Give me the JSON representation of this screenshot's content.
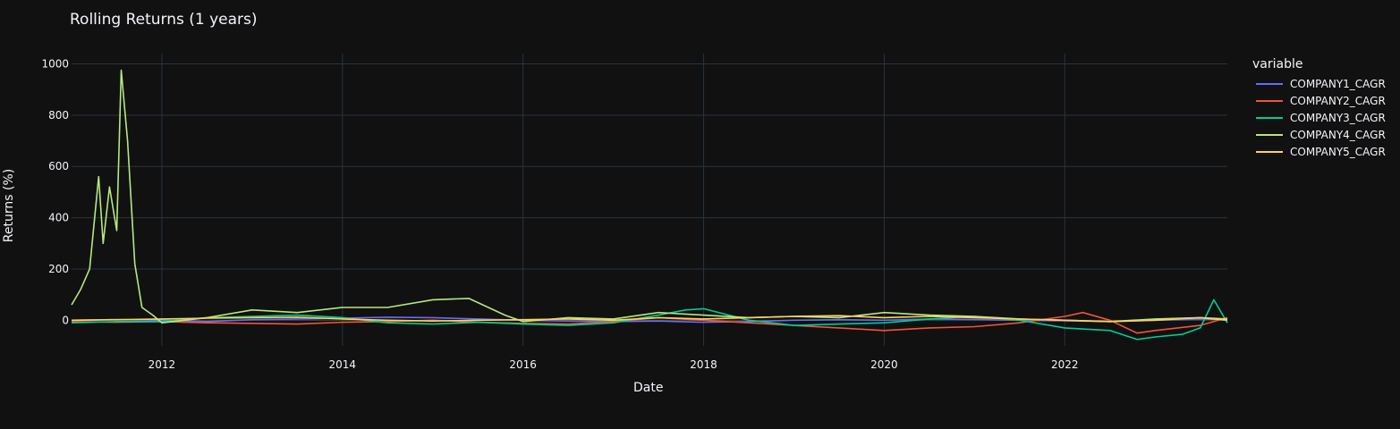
{
  "chart_data": {
    "type": "line",
    "title": "Rolling Returns (1 years)",
    "xlabel": "Date",
    "ylabel": "Returns (%)",
    "legend_title": "variable",
    "legend_position": "top-right",
    "grid": true,
    "xlim": [
      2011.0,
      2023.8
    ],
    "ylim": [
      -100,
      1040
    ],
    "x_ticks": [
      "2012",
      "2014",
      "2016",
      "2018",
      "2020",
      "2022"
    ],
    "x_tick_values": [
      2012,
      2014,
      2016,
      2018,
      2020,
      2022
    ],
    "y_ticks": [
      "0",
      "200",
      "400",
      "600",
      "800",
      "1000"
    ],
    "y_tick_values": [
      0,
      200,
      400,
      600,
      800,
      1000
    ],
    "series": [
      {
        "name": "COMPANY1_CAGR",
        "color": "#636efa",
        "x": [
          2011.0,
          2011.5,
          2012.0,
          2012.5,
          2013.0,
          2013.5,
          2014.0,
          2014.5,
          2015.0,
          2015.5,
          2016.0,
          2016.5,
          2017.0,
          2017.5,
          2018.0,
          2018.5,
          2019.0,
          2019.5,
          2020.0,
          2020.5,
          2021.0,
          2021.5,
          2022.0,
          2022.5,
          2023.0,
          2023.5,
          2023.8
        ],
        "y": [
          0,
          3,
          0,
          -5,
          2,
          5,
          8,
          12,
          10,
          5,
          0,
          -3,
          -5,
          -3,
          -8,
          -5,
          0,
          2,
          0,
          5,
          3,
          0,
          -2,
          -5,
          0,
          5,
          2
        ]
      },
      {
        "name": "COMPANY2_CAGR",
        "color": "#ef553b",
        "x": [
          2011.0,
          2011.5,
          2012.0,
          2012.5,
          2013.0,
          2013.5,
          2014.0,
          2014.5,
          2015.0,
          2015.5,
          2016.0,
          2016.5,
          2017.0,
          2017.5,
          2018.0,
          2018.5,
          2019.0,
          2019.5,
          2020.0,
          2020.5,
          2021.0,
          2021.5,
          2022.0,
          2022.2,
          2022.5,
          2022.8,
          2023.0,
          2023.5,
          2023.8
        ],
        "y": [
          -5,
          -8,
          -5,
          -10,
          -12,
          -15,
          -8,
          -5,
          0,
          -8,
          -12,
          -15,
          -5,
          10,
          0,
          -10,
          -20,
          -30,
          -40,
          -30,
          -25,
          -10,
          15,
          30,
          0,
          -50,
          -40,
          -20,
          10
        ]
      },
      {
        "name": "COMPANY3_CAGR",
        "color": "#00cc96",
        "x": [
          2011.0,
          2011.5,
          2012.0,
          2012.5,
          2013.0,
          2013.5,
          2014.0,
          2014.5,
          2015.0,
          2015.5,
          2016.0,
          2016.5,
          2017.0,
          2017.5,
          2017.8,
          2018.0,
          2018.5,
          2019.0,
          2019.5,
          2020.0,
          2020.5,
          2021.0,
          2021.5,
          2022.0,
          2022.5,
          2022.8,
          2023.0,
          2023.3,
          2023.5,
          2023.65,
          2023.8
        ],
        "y": [
          -10,
          -5,
          -5,
          10,
          15,
          20,
          10,
          -10,
          -15,
          -8,
          -15,
          -20,
          -10,
          20,
          40,
          45,
          0,
          -20,
          -15,
          -10,
          5,
          15,
          0,
          -30,
          -40,
          -75,
          -65,
          -55,
          -30,
          80,
          -10
        ]
      },
      {
        "name": "COMPANY4_CAGR",
        "color": "#b6e880",
        "x": [
          2011.0,
          2011.1,
          2011.2,
          2011.3,
          2011.35,
          2011.42,
          2011.5,
          2011.55,
          2011.62,
          2011.7,
          2011.78,
          2011.9,
          2012.0,
          2012.5,
          2013.0,
          2013.5,
          2014.0,
          2014.5,
          2015.0,
          2015.4,
          2015.8,
          2016.0,
          2016.5,
          2017.0,
          2017.5,
          2018.0,
          2018.5,
          2019.0,
          2019.5,
          2020.0,
          2020.5,
          2021.0,
          2021.5,
          2022.0,
          2022.5,
          2023.0,
          2023.5,
          2023.8
        ],
        "y": [
          60,
          120,
          200,
          560,
          300,
          520,
          350,
          975,
          700,
          220,
          50,
          20,
          -10,
          10,
          40,
          30,
          50,
          50,
          80,
          85,
          20,
          -5,
          10,
          5,
          30,
          20,
          10,
          15,
          10,
          30,
          20,
          15,
          5,
          0,
          -5,
          5,
          10,
          0
        ]
      },
      {
        "name": "COMPANY5_CAGR",
        "color": "#ffd15a",
        "x": [
          2011.0,
          2011.5,
          2012.0,
          2012.5,
          2013.0,
          2013.5,
          2014.0,
          2014.5,
          2015.0,
          2015.5,
          2016.0,
          2016.5,
          2017.0,
          2017.5,
          2018.0,
          2018.5,
          2019.0,
          2019.5,
          2020.0,
          2020.5,
          2021.0,
          2021.5,
          2022.0,
          2022.5,
          2023.0,
          2023.5,
          2023.8
        ],
        "y": [
          0,
          2,
          5,
          8,
          10,
          12,
          5,
          0,
          -3,
          0,
          2,
          5,
          0,
          10,
          5,
          10,
          15,
          18,
          10,
          15,
          10,
          5,
          0,
          -5,
          0,
          10,
          5
        ]
      }
    ]
  }
}
